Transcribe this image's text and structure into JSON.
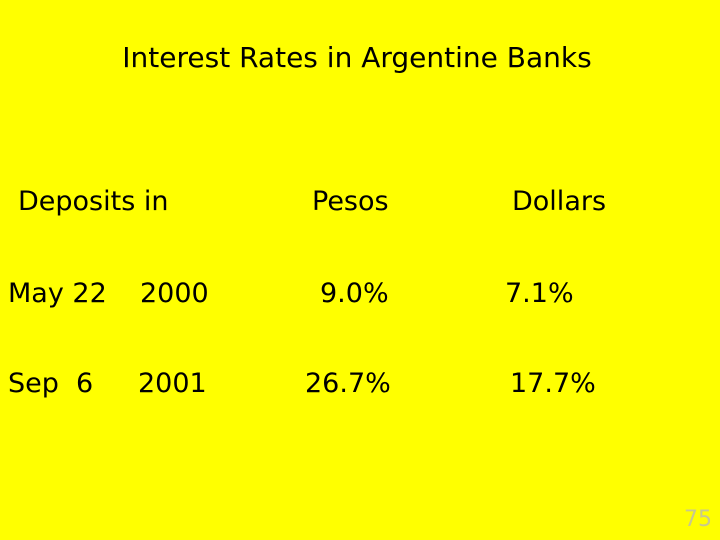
{
  "title": "Interest Rates in Argentine Banks",
  "table": {
    "header": [
      "Deposits in",
      "Pesos",
      "Dollars"
    ],
    "rows": [
      [
        "May 22",
        "2000",
        "9.0%",
        "7.1%"
      ],
      [
        "Sep  6",
        "2001",
        "26.7%",
        "17.7%"
      ]
    ]
  },
  "page_number": "75"
}
